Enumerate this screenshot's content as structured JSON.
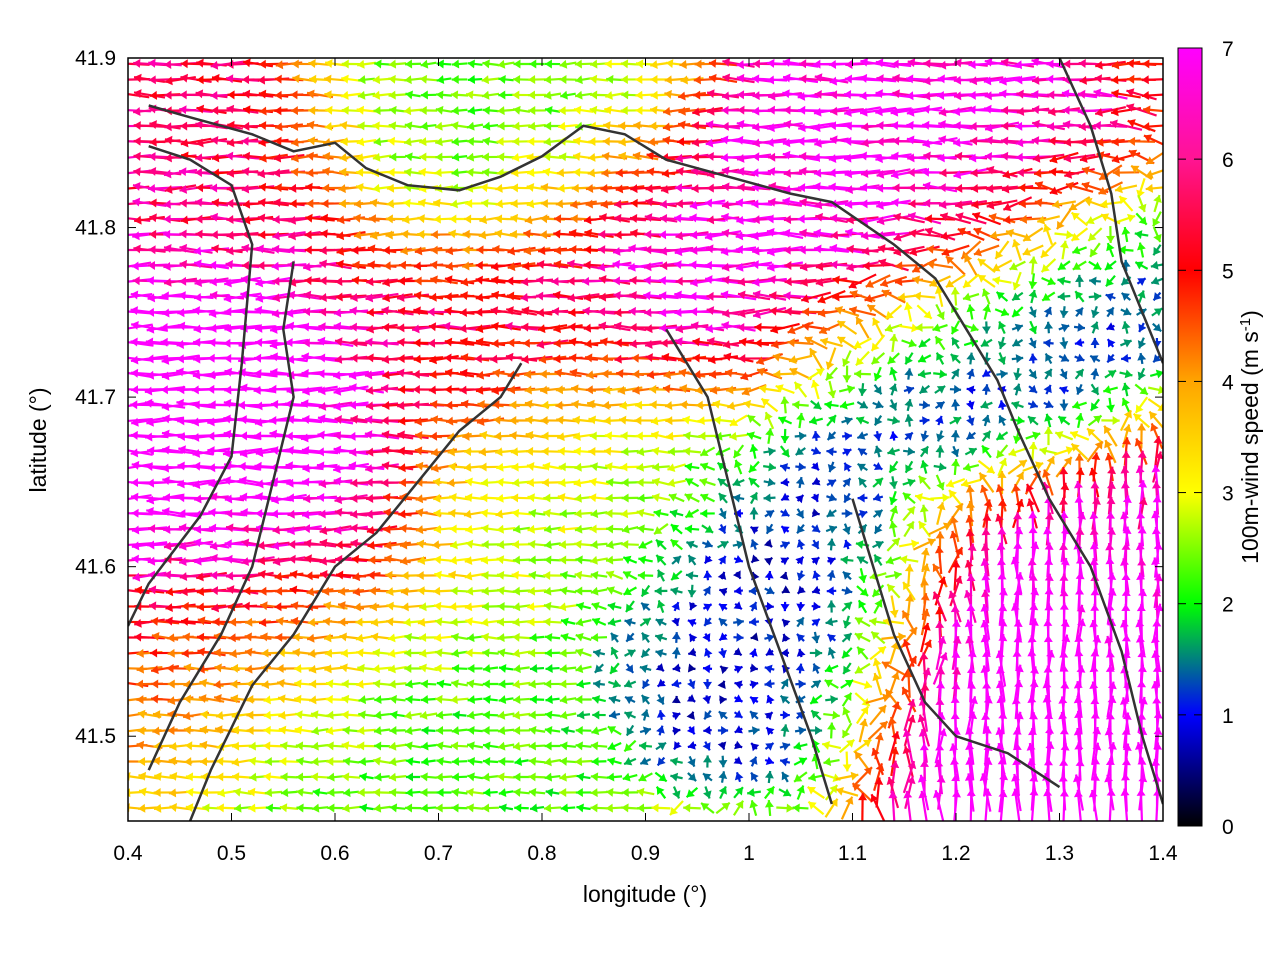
{
  "chart_data": {
    "type": "vector-field",
    "xlabel": "longitude (°)",
    "ylabel": "latitude (°)",
    "xlim": [
      0.4,
      1.4
    ],
    "ylim": [
      41.45,
      41.9
    ],
    "xticks": [
      "0.4",
      "0.5",
      "0.6",
      "0.7",
      "0.8",
      "0.9",
      "1",
      "1.1",
      "1.2",
      "1.3",
      "1.4"
    ],
    "yticks": [
      "41.5",
      "41.6",
      "41.7",
      "41.8",
      "41.9"
    ],
    "grid": false,
    "colorbar": {
      "label": "100m-wind speed (m s-1)",
      "label_parts": [
        "100m-wind speed (m s",
        "-1",
        ")"
      ],
      "range": [
        0,
        7
      ],
      "ticks": [
        "0",
        "1",
        "2",
        "3",
        "4",
        "5",
        "6",
        "7"
      ],
      "colors": [
        "#000000",
        "#0000ff",
        "#00ff00",
        "#ffff00",
        "#ffa500",
        "#ff0000",
        "#ff00ff"
      ]
    },
    "wind_regions": [
      {
        "lon": 0.47,
        "lat": 41.71,
        "speed": 6.8,
        "direction": "west"
      },
      {
        "lon": 0.48,
        "lat": 41.63,
        "speed": 6.3,
        "direction": "west"
      },
      {
        "lon": 0.45,
        "lat": 41.82,
        "speed": 5.4,
        "direction": "west"
      },
      {
        "lon": 0.7,
        "lat": 41.74,
        "speed": 5.5,
        "direction": "west"
      },
      {
        "lon": 0.9,
        "lat": 41.77,
        "speed": 6.0,
        "direction": "west"
      },
      {
        "lon": 1.12,
        "lat": 41.8,
        "speed": 6.1,
        "direction": "west"
      },
      {
        "lon": 0.75,
        "lat": 41.84,
        "speed": 2.3,
        "direction": "west"
      },
      {
        "lon": 0.85,
        "lat": 41.66,
        "speed": 2.8,
        "direction": "west"
      },
      {
        "lon": 1.05,
        "lat": 41.6,
        "speed": 0.8,
        "direction": "variable"
      },
      {
        "lon": 1.22,
        "lat": 41.72,
        "speed": 1.0,
        "direction": "variable"
      },
      {
        "lon": 1.27,
        "lat": 41.57,
        "speed": 6.7,
        "direction": "north"
      },
      {
        "lon": 1.37,
        "lat": 41.6,
        "speed": 5.8,
        "direction": "north"
      },
      {
        "lon": 0.62,
        "lat": 41.5,
        "speed": 2.2,
        "direction": "west"
      },
      {
        "lon": 0.5,
        "lat": 41.55,
        "speed": 4.4,
        "direction": "west"
      }
    ],
    "coastlines": [
      [
        [
          0.42,
          41.872
        ],
        [
          0.46,
          41.865
        ],
        [
          0.52,
          41.855
        ],
        [
          0.56,
          41.845
        ],
        [
          0.6,
          41.85
        ],
        [
          0.63,
          41.835
        ],
        [
          0.67,
          41.825
        ],
        [
          0.72,
          41.822
        ],
        [
          0.76,
          41.83
        ],
        [
          0.8,
          41.842
        ],
        [
          0.84,
          41.86
        ],
        [
          0.88,
          41.855
        ],
        [
          0.92,
          41.84
        ],
        [
          0.98,
          41.83
        ],
        [
          1.04,
          41.82
        ],
        [
          1.08,
          41.815
        ],
        [
          1.14,
          41.79
        ],
        [
          1.18,
          41.77
        ],
        [
          1.21,
          41.74
        ],
        [
          1.24,
          41.71
        ],
        [
          1.26,
          41.68
        ],
        [
          1.29,
          41.64
        ],
        [
          1.33,
          41.6
        ],
        [
          1.36,
          41.55
        ],
        [
          1.38,
          41.5
        ],
        [
          1.4,
          41.46
        ]
      ],
      [
        [
          0.42,
          41.848
        ],
        [
          0.46,
          41.84
        ],
        [
          0.5,
          41.825
        ],
        [
          0.52,
          41.79
        ],
        [
          0.51,
          41.72
        ],
        [
          0.5,
          41.665
        ],
        [
          0.47,
          41.63
        ],
        [
          0.42,
          41.59
        ],
        [
          0.4,
          41.565
        ]
      ],
      [
        [
          0.56,
          41.78
        ],
        [
          0.55,
          41.74
        ],
        [
          0.56,
          41.7
        ],
        [
          0.54,
          41.65
        ],
        [
          0.52,
          41.6
        ],
        [
          0.49,
          41.56
        ],
        [
          0.45,
          41.52
        ],
        [
          0.42,
          41.48
        ]
      ],
      [
        [
          0.78,
          41.72
        ],
        [
          0.76,
          41.7
        ],
        [
          0.72,
          41.68
        ],
        [
          0.68,
          41.65
        ],
        [
          0.64,
          41.62
        ],
        [
          0.6,
          41.6
        ],
        [
          0.56,
          41.56
        ],
        [
          0.52,
          41.53
        ],
        [
          0.48,
          41.48
        ],
        [
          0.46,
          41.45
        ]
      ],
      [
        [
          0.92,
          41.74
        ],
        [
          0.96,
          41.7
        ],
        [
          0.98,
          41.65
        ],
        [
          1.0,
          41.6
        ],
        [
          1.03,
          41.55
        ],
        [
          1.06,
          41.5
        ],
        [
          1.08,
          41.46
        ]
      ],
      [
        [
          1.1,
          41.64
        ],
        [
          1.12,
          41.6
        ],
        [
          1.14,
          41.56
        ],
        [
          1.17,
          41.52
        ],
        [
          1.2,
          41.5
        ],
        [
          1.25,
          41.49
        ],
        [
          1.3,
          41.47
        ]
      ],
      [
        [
          1.3,
          41.9
        ],
        [
          1.33,
          41.86
        ],
        [
          1.35,
          41.82
        ],
        [
          1.36,
          41.78
        ],
        [
          1.38,
          41.75
        ],
        [
          1.4,
          41.72
        ]
      ]
    ]
  }
}
